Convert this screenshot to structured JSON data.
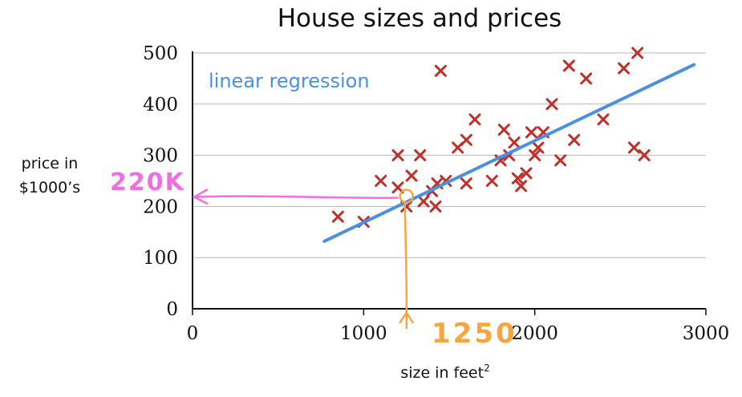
{
  "chart_data": {
    "type": "scatter",
    "title": "House sizes and prices",
    "xlabel": "size in feet",
    "xlabel_sup": "2",
    "ylabel_line1": "price in",
    "ylabel_line2": "$1000’s",
    "xlim": [
      0,
      3000
    ],
    "ylim": [
      0,
      500
    ],
    "x_ticks": [
      0,
      1000,
      2000,
      3000
    ],
    "y_ticks": [
      0,
      100,
      200,
      300,
      400,
      500
    ],
    "grid": "horizontal",
    "colors": {
      "points": "#c0302b",
      "regression": "#4a90e2",
      "annotation_y": "#f06ee0",
      "annotation_x": "#f7a540"
    },
    "series": [
      {
        "name": "",
        "marker": "x",
        "points": [
          [
            850,
            180
          ],
          [
            1000,
            170
          ],
          [
            1100,
            250
          ],
          [
            1200,
            300
          ],
          [
            1200,
            237
          ],
          [
            1250,
            200
          ],
          [
            1280,
            260
          ],
          [
            1330,
            300
          ],
          [
            1350,
            210
          ],
          [
            1400,
            230
          ],
          [
            1420,
            200
          ],
          [
            1430,
            245
          ],
          [
            1450,
            465
          ],
          [
            1480,
            250
          ],
          [
            1550,
            315
          ],
          [
            1600,
            330
          ],
          [
            1600,
            245
          ],
          [
            1650,
            370
          ],
          [
            1750,
            250
          ],
          [
            1800,
            290
          ],
          [
            1820,
            350
          ],
          [
            1850,
            300
          ],
          [
            1880,
            325
          ],
          [
            1900,
            255
          ],
          [
            1920,
            240
          ],
          [
            1950,
            265
          ],
          [
            1980,
            345
          ],
          [
            2000,
            300
          ],
          [
            2020,
            315
          ],
          [
            2050,
            345
          ],
          [
            2100,
            400
          ],
          [
            2150,
            290
          ],
          [
            2200,
            475
          ],
          [
            2230,
            330
          ],
          [
            2300,
            450
          ],
          [
            2400,
            370
          ],
          [
            2520,
            470
          ],
          [
            2580,
            315
          ],
          [
            2600,
            500
          ],
          [
            2640,
            300
          ]
        ]
      }
    ],
    "regression_line": {
      "label": "linear regression",
      "x": [
        770,
        2930
      ],
      "y": [
        132,
        477
      ]
    },
    "annotations": [
      {
        "text": "220K",
        "value": 220,
        "axis": "y"
      },
      {
        "text": "1250",
        "value": 1250,
        "axis": "x"
      }
    ]
  }
}
